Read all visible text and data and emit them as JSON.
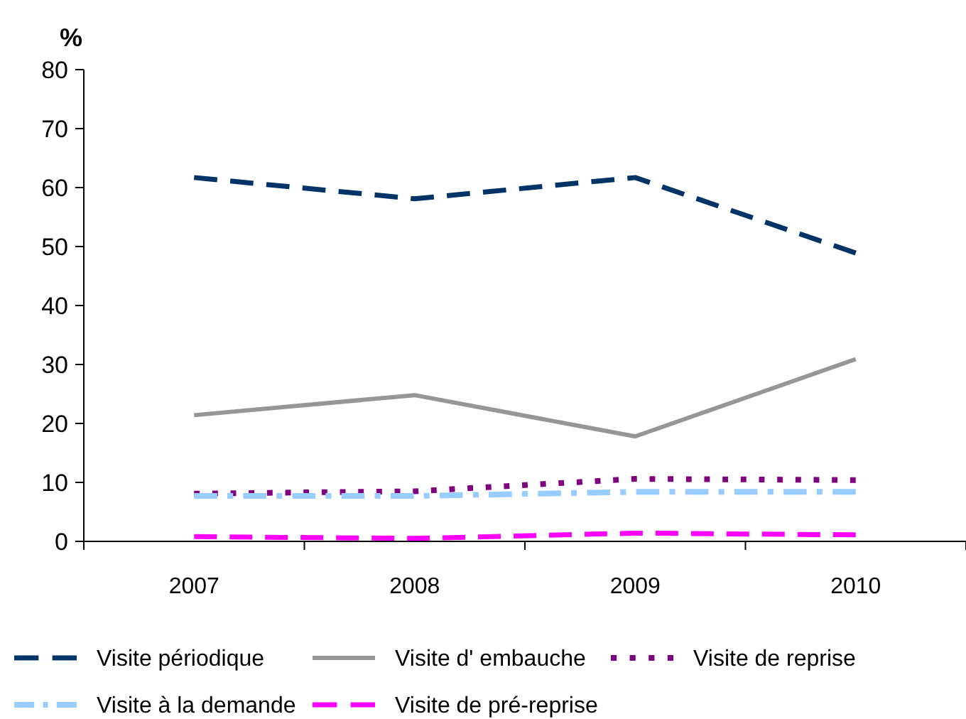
{
  "chart_data": {
    "type": "line",
    "ylabel": "%",
    "categories": [
      "2007",
      "2008",
      "2009",
      "2010"
    ],
    "series": [
      {
        "name": "Visite périodique",
        "color": "#003366",
        "line_style": "dashed",
        "values": [
          61.7,
          58.1,
          61.7,
          48.9
        ]
      },
      {
        "name": "Visite d' embauche",
        "color": "#969696",
        "line_style": "solid",
        "values": [
          21.4,
          24.8,
          17.8,
          30.9
        ]
      },
      {
        "name": "Visite de reprise",
        "color": "#800080",
        "line_style": "dotted",
        "values": [
          8.1,
          8.5,
          10.6,
          10.4
        ]
      },
      {
        "name": "Visite à la demande",
        "color": "#99ccff",
        "line_style": "dashdot",
        "values": [
          7.7,
          7.7,
          8.4,
          8.4
        ]
      },
      {
        "name": "Visite de pré-reprise",
        "color": "#ff00ff",
        "line_style": "dashed",
        "values": [
          0.8,
          0.5,
          1.4,
          1.1
        ]
      }
    ],
    "ylim": [
      0,
      80
    ],
    "yticks": [
      0,
      10,
      20,
      30,
      40,
      50,
      60,
      70,
      80
    ],
    "grid": false,
    "legend": "bottom",
    "marker": "none"
  }
}
